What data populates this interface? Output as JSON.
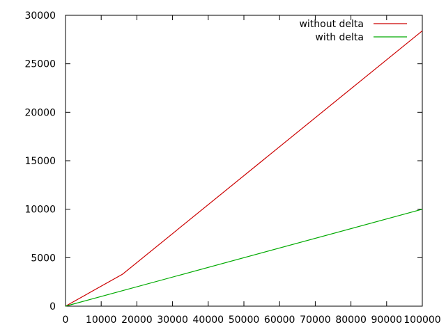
{
  "chart_data": {
    "type": "line",
    "title": "",
    "xlabel": "",
    "ylabel": "",
    "xlim": [
      0,
      100000
    ],
    "ylim": [
      0,
      30000
    ],
    "x_ticks": [
      0,
      10000,
      20000,
      30000,
      40000,
      50000,
      60000,
      70000,
      80000,
      90000,
      100000
    ],
    "y_ticks": [
      0,
      5000,
      10000,
      15000,
      20000,
      25000,
      30000
    ],
    "x_tick_labels": [
      "0",
      "10000",
      "20000",
      "30000",
      "40000",
      "50000",
      "60000",
      "70000",
      "80000",
      "90000",
      "100000"
    ],
    "y_tick_labels": [
      "0",
      "5000",
      "10000",
      "15000",
      "20000",
      "25000",
      "30000"
    ],
    "grid": false,
    "legend": {
      "placement": "top-right"
    },
    "series": [
      {
        "name": "without delta",
        "color": "#cc0000",
        "x": [
          0,
          16000,
          100000
        ],
        "y": [
          0,
          3300,
          28400
        ]
      },
      {
        "name": "with delta",
        "color": "#00aa00",
        "x": [
          0,
          100000
        ],
        "y": [
          0,
          10000
        ]
      }
    ]
  }
}
